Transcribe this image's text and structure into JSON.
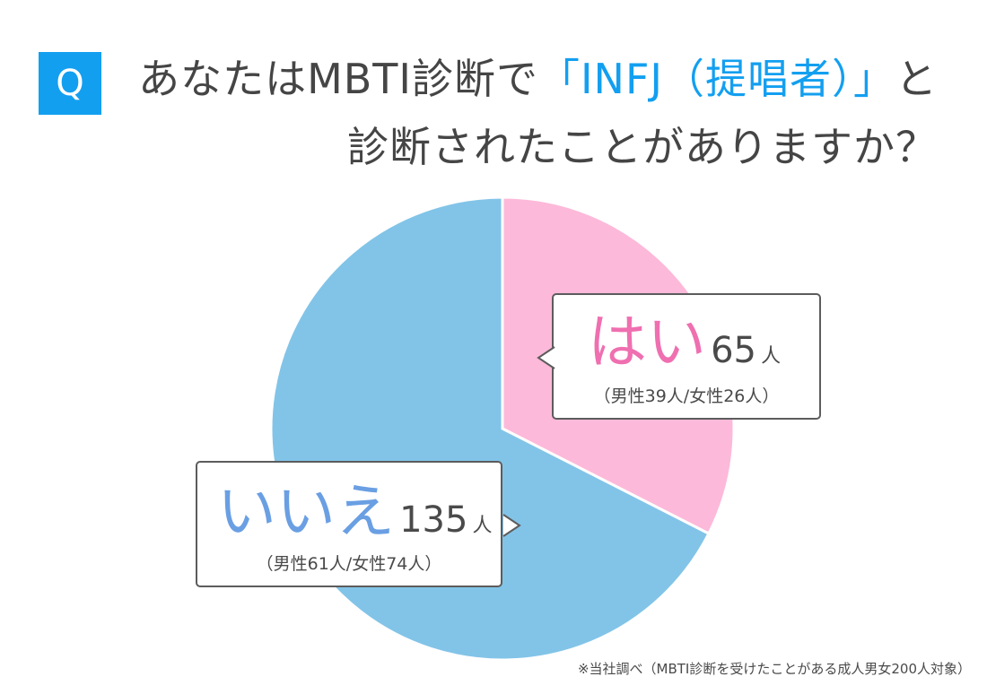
{
  "badge": "Q",
  "title": {
    "line1_pre": "あなたはMBTI診断で",
    "line1_highlight": "「INFJ（提唱者）」",
    "line1_post": "と",
    "line2": "診断されたことがありますか？"
  },
  "chart_data": {
    "type": "pie",
    "categories": [
      "はい",
      "いいえ"
    ],
    "values": [
      65,
      135
    ],
    "unit": "人",
    "breakdown": [
      "（男性39人/女性26人）",
      "（男性61人/女性74人）"
    ],
    "colors": [
      "#fdb9d9",
      "#82c4e8"
    ],
    "start_angle": "12 o'clock",
    "direction": "clockwise"
  },
  "labels": {
    "yes": {
      "word": "はい",
      "count": "65",
      "unit": "人",
      "breakdown": "（男性39人/女性26人）"
    },
    "no": {
      "word": "いいえ",
      "count": "135",
      "unit": "人",
      "breakdown": "（男性61人/女性74人）"
    }
  },
  "footnote": "※当社調べ（MBTI診断を受けたことがある成人男女200人対象）"
}
